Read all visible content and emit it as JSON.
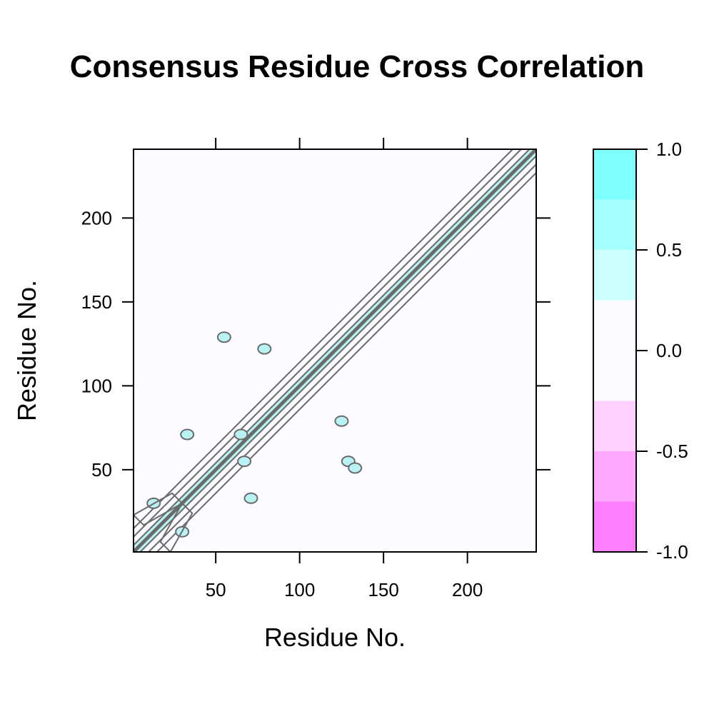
{
  "chart_data": {
    "type": "heatmap",
    "title": "Consensus Residue Cross Correlation",
    "xlabel": "Residue No.",
    "ylabel": "Residue No.",
    "xlim": [
      1,
      241
    ],
    "ylim": [
      1,
      241
    ],
    "x_ticks": [
      50,
      100,
      150,
      200
    ],
    "y_ticks": [
      50,
      100,
      150,
      200
    ],
    "grid": false,
    "background_value": 0.0,
    "colorbar": {
      "range": [
        -1.0,
        1.0
      ],
      "tick_values": [
        1.0,
        0.5,
        0.0,
        -0.5,
        -1.0
      ],
      "tick_labels": [
        "1.0",
        "0.5",
        "0.0",
        "-0.5",
        "-1.0"
      ],
      "levels": [
        {
          "from": 0.75,
          "to": 1.0,
          "color": "#80ffff"
        },
        {
          "from": 0.5,
          "to": 0.75,
          "color": "#a6ffff"
        },
        {
          "from": 0.25,
          "to": 0.5,
          "color": "#ccffff"
        },
        {
          "from": -0.25,
          "to": 0.25,
          "color": "#fdfbff"
        },
        {
          "from": -0.5,
          "to": -0.25,
          "color": "#ffd1ff"
        },
        {
          "from": -0.75,
          "to": -0.5,
          "color": "#ffa8ff"
        },
        {
          "from": -1.0,
          "to": -0.75,
          "color": "#ff80ff"
        }
      ]
    },
    "diagonal_band": {
      "from": 1,
      "to": 241,
      "value": 1.0
    },
    "positive_regions": [
      {
        "x": 13,
        "y": 30,
        "value": 0.4
      },
      {
        "x": 30,
        "y": 13,
        "value": 0.4
      },
      {
        "x": 65,
        "y": 71,
        "value": 0.4
      },
      {
        "x": 55,
        "y": 129,
        "value": 0.4
      },
      {
        "x": 79,
        "y": 122,
        "value": 0.4
      },
      {
        "x": 125,
        "y": 79,
        "value": 0.4
      },
      {
        "x": 67,
        "y": 55,
        "value": 0.4
      },
      {
        "x": 33,
        "y": 71,
        "value": 0.4
      },
      {
        "x": 71,
        "y": 33,
        "value": 0.4
      },
      {
        "x": 129,
        "y": 55,
        "value": 0.4
      },
      {
        "x": 133,
        "y": 51,
        "value": 0.4
      }
    ]
  }
}
